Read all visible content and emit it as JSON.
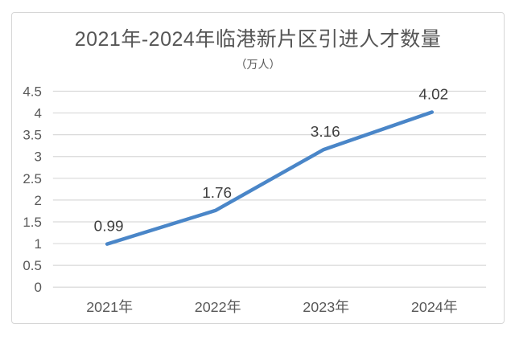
{
  "chart_data": {
    "type": "line",
    "title": "2021年-2024年临港新片区引进人才数量",
    "subtitle": "（万人）",
    "categories": [
      "2021年",
      "2022年",
      "2023年",
      "2024年"
    ],
    "values": [
      0.99,
      1.76,
      3.16,
      4.02
    ],
    "data_labels": [
      "0.99",
      "1.76",
      "3.16",
      "4.02"
    ],
    "xlabel": "",
    "ylabel": "",
    "ylim": [
      0,
      4.5
    ],
    "ytick_step": 0.5,
    "yticks": [
      "0",
      "0.5",
      "1",
      "1.5",
      "2",
      "2.5",
      "3",
      "3.5",
      "4",
      "4.5"
    ],
    "grid": true,
    "legend": "none",
    "marker": "none",
    "colors": {
      "line": "#4a86c8",
      "gridline": "#d9d9d9",
      "card_border": "#d6d6d6",
      "axis_text": "#595959",
      "data_label_text": "#3f3f3f",
      "title_text": "#555555",
      "background": "#ffffff"
    }
  }
}
